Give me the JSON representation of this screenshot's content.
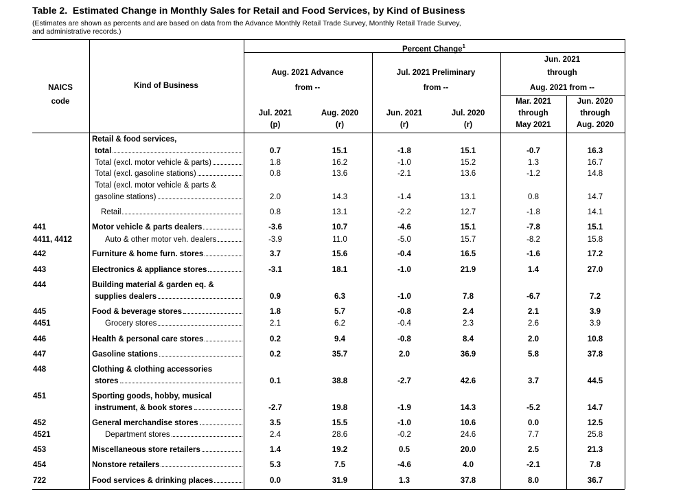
{
  "title": "Table 2.  Estimated Change in Monthly Sales for Retail and Food Services, by Kind of Business",
  "note": [
    "(Estimates are shown as percents and are based on data from the Advance Monthly Retail Trade Survey, Monthly Retail Trade Survey,",
    "and administrative records.)"
  ],
  "header": {
    "naics": [
      "NAICS",
      "code"
    ],
    "kind": "Kind of Business",
    "percent_change": "Percent Change",
    "footnote_mark": "1",
    "groups": [
      [
        "Aug. 2021 Advance",
        "from --"
      ],
      [
        "Jul. 2021 Preliminary",
        "from --"
      ],
      [
        "Jun. 2021",
        "through",
        "Aug. 2021 from --"
      ]
    ],
    "columns": [
      [
        "Jul. 2021",
        "(p)"
      ],
      [
        "Aug. 2020",
        "(r)"
      ],
      [
        "Jun. 2021",
        "(r)"
      ],
      [
        "Jul. 2020",
        "(r)"
      ],
      [
        "Mar. 2021",
        "through",
        "May 2021"
      ],
      [
        "Jun. 2020",
        "through",
        "Aug. 2020"
      ]
    ]
  },
  "rows": [
    {
      "kind": [
        "Retail & food services,",
        "total"
      ],
      "bold": true,
      "values": [
        "0.7",
        "15.1",
        "-1.8",
        "15.1",
        "-0.7",
        "16.3"
      ]
    },
    {
      "kind": [
        "Total (excl. motor vehicle & parts)"
      ],
      "level": 1,
      "values": [
        "1.8",
        "16.2",
        "-1.0",
        "15.2",
        "1.3",
        "16.7"
      ]
    },
    {
      "kind": [
        "Total (excl. gasoline stations)"
      ],
      "level": 1,
      "values": [
        "0.8",
        "13.6",
        "-2.1",
        "13.6",
        "-1.2",
        "14.8"
      ]
    },
    {
      "kind": [
        "Total (excl. motor vehicle & parts &",
        "gasoline stations)"
      ],
      "level": 1,
      "values": [
        "2.0",
        "14.3",
        "-1.4",
        "13.1",
        "0.8",
        "14.7"
      ]
    },
    {
      "kind": [
        "Retail"
      ],
      "level": 2,
      "values": [
        "0.8",
        "13.1",
        "-2.2",
        "12.7",
        "-1.8",
        "14.1"
      ]
    },
    {
      "naics": "441",
      "kind": [
        "Motor vehicle & parts dealers"
      ],
      "bold": true,
      "values": [
        "-3.6",
        "10.7",
        "-4.6",
        "15.1",
        "-7.8",
        "15.1"
      ]
    },
    {
      "naics": "4411, 4412",
      "kind": [
        "Auto & other motor veh. dealers"
      ],
      "level": 3,
      "values": [
        "-3.9",
        "11.0",
        "-5.0",
        "15.7",
        "-8.2",
        "15.8"
      ]
    },
    {
      "naics": "442",
      "kind": [
        "Furniture & home furn. stores"
      ],
      "bold": true,
      "values": [
        "3.7",
        "15.6",
        "-0.4",
        "16.5",
        "-1.6",
        "17.2"
      ]
    },
    {
      "naics": "443",
      "kind": [
        "Electronics & appliance stores"
      ],
      "bold": true,
      "values": [
        "-3.1",
        "18.1",
        "-1.0",
        "21.9",
        "1.4",
        "27.0"
      ]
    },
    {
      "naics": "444",
      "kind": [
        "Building material & garden eq. &",
        "supplies dealers"
      ],
      "bold": true,
      "values": [
        "0.9",
        "6.3",
        "-1.0",
        "7.8",
        "-6.7",
        "7.2"
      ]
    },
    {
      "naics": "445",
      "kind": [
        "Food & beverage stores"
      ],
      "bold": true,
      "values": [
        "1.8",
        "5.7",
        "-0.8",
        "2.4",
        "2.1",
        "3.9"
      ]
    },
    {
      "naics": "4451",
      "kind": [
        "Grocery stores"
      ],
      "level": 3,
      "values": [
        "2.1",
        "6.2",
        "-0.4",
        "2.3",
        "2.6",
        "3.9"
      ]
    },
    {
      "naics": "446",
      "kind": [
        "Health & personal care stores"
      ],
      "bold": true,
      "values": [
        "0.2",
        "9.4",
        "-0.8",
        "8.4",
        "2.0",
        "10.8"
      ]
    },
    {
      "naics": "447",
      "kind": [
        "Gasoline stations"
      ],
      "bold": true,
      "values": [
        "0.2",
        "35.7",
        "2.0",
        "36.9",
        "5.8",
        "37.8"
      ]
    },
    {
      "naics": "448",
      "kind": [
        "Clothing & clothing accessories",
        "stores"
      ],
      "bold": true,
      "values": [
        "0.1",
        "38.8",
        "-2.7",
        "42.6",
        "3.7",
        "44.5"
      ]
    },
    {
      "naics": "451",
      "kind": [
        "Sporting goods, hobby, musical",
        "instrument, & book stores"
      ],
      "bold": true,
      "values": [
        "-2.7",
        "19.8",
        "-1.9",
        "14.3",
        "-5.2",
        "14.7"
      ]
    },
    {
      "naics": "452",
      "kind": [
        "General merchandise stores"
      ],
      "bold": true,
      "values": [
        "3.5",
        "15.5",
        "-1.0",
        "10.6",
        "0.0",
        "12.5"
      ]
    },
    {
      "naics": "4521",
      "kind": [
        "Department stores"
      ],
      "level": 3,
      "values": [
        "2.4",
        "28.6",
        "-0.2",
        "24.6",
        "7.7",
        "25.8"
      ]
    },
    {
      "naics": "453",
      "kind": [
        "Miscellaneous store retailers"
      ],
      "bold": true,
      "values": [
        "1.4",
        "19.2",
        "0.5",
        "20.0",
        "2.5",
        "21.3"
      ]
    },
    {
      "naics": "454",
      "kind": [
        "Nonstore retailers"
      ],
      "bold": true,
      "values": [
        "5.3",
        "7.5",
        "-4.6",
        "4.0",
        "-2.1",
        "7.8"
      ]
    },
    {
      "naics": "722",
      "kind": [
        "Food services & drinking places"
      ],
      "bold": true,
      "values": [
        "0.0",
        "31.9",
        "1.3",
        "37.8",
        "8.0",
        "36.7"
      ]
    }
  ]
}
